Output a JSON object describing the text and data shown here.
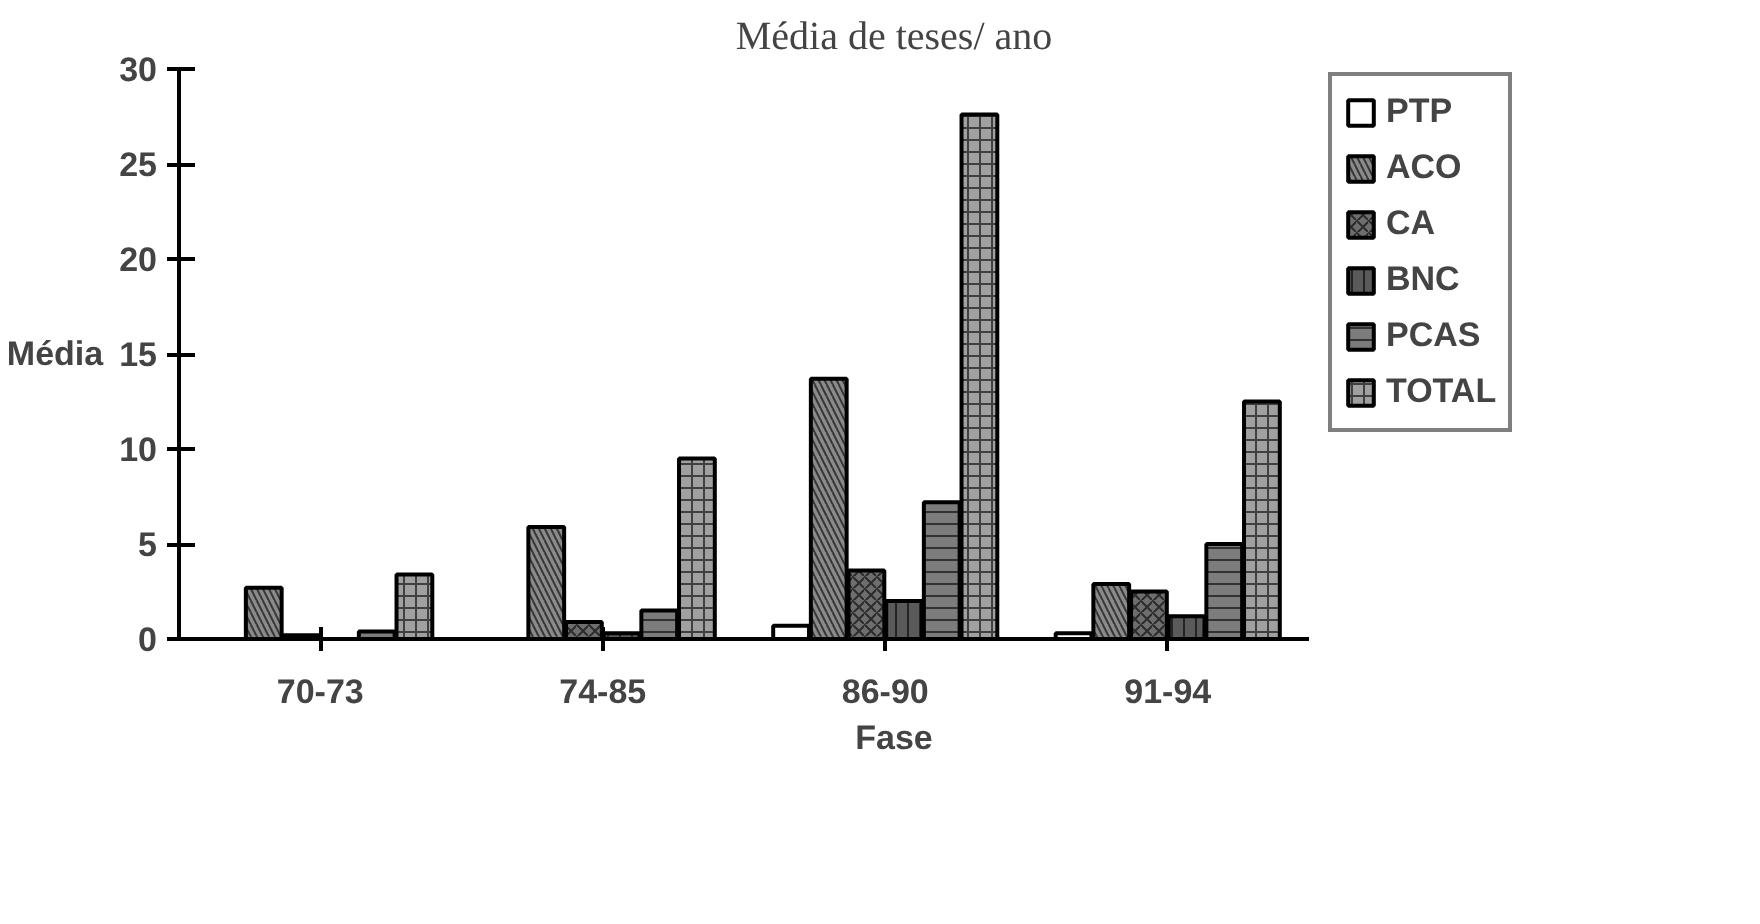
{
  "chart_data": {
    "type": "bar",
    "title": "Média de teses/ ano",
    "xlabel": "Fase",
    "ylabel": "Média",
    "categories": [
      "70-73",
      "74-85",
      "86-90",
      "91-94"
    ],
    "series": [
      {
        "name": "PTP",
        "color": "#ffffff",
        "values": [
          null,
          null,
          0.7,
          0.3
        ]
      },
      {
        "name": "ACO",
        "color": "#8a8a8a",
        "values": [
          2.7,
          5.9,
          13.7,
          2.9
        ]
      },
      {
        "name": "CA",
        "color": "#6e6e6e",
        "values": [
          0.2,
          0.9,
          3.6,
          2.5
        ]
      },
      {
        "name": "BNC",
        "color": "#5a5a5a",
        "values": [
          null,
          0.3,
          2.0,
          1.2
        ]
      },
      {
        "name": "PCAS",
        "color": "#7c7c7c",
        "values": [
          0.4,
          1.5,
          7.2,
          5.0
        ]
      },
      {
        "name": "TOTAL",
        "color": "#a0a0a0",
        "values": [
          3.4,
          9.5,
          27.6,
          12.5
        ]
      }
    ],
    "ylim": [
      0,
      30
    ],
    "yticks": [
      0,
      5,
      10,
      15,
      20,
      25,
      30
    ],
    "grid": false,
    "legend": "right"
  }
}
